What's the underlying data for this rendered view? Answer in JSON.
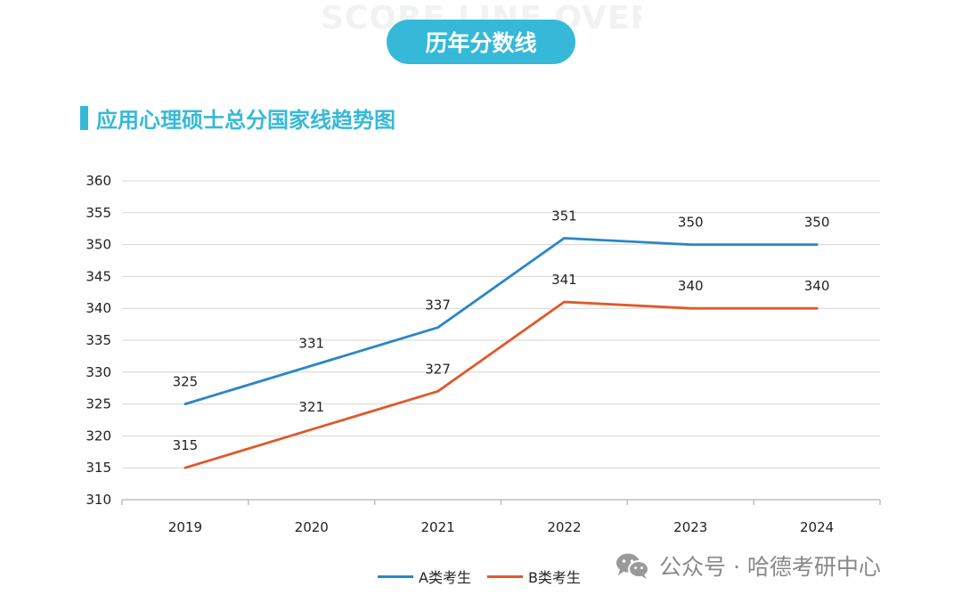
{
  "banner": {
    "watermark": "SCORE LINE OVER THE YEARS",
    "title": "历年分数线"
  },
  "section": {
    "title": "应用心理硕士总分国家线趋势图"
  },
  "chart_data": {
    "type": "line",
    "title": "应用心理硕士总分国家线趋势图",
    "categories": [
      "2019",
      "2020",
      "2021",
      "2022",
      "2023",
      "2024"
    ],
    "ylim": [
      310,
      360
    ],
    "yticks": [
      310,
      315,
      320,
      325,
      330,
      335,
      340,
      345,
      350,
      355,
      360
    ],
    "grid": true,
    "legend_position": "bottom",
    "series": [
      {
        "name": "A类考生",
        "color": "#2a86c8",
        "values": [
          325,
          331,
          337,
          351,
          350,
          350
        ]
      },
      {
        "name": "B类考生",
        "color": "#e0592a",
        "values": [
          315,
          321,
          327,
          341,
          340,
          340
        ]
      }
    ]
  },
  "watermark_brand": {
    "text": "公众号 · 哈德考研中心",
    "icon": "wechat-icon"
  }
}
